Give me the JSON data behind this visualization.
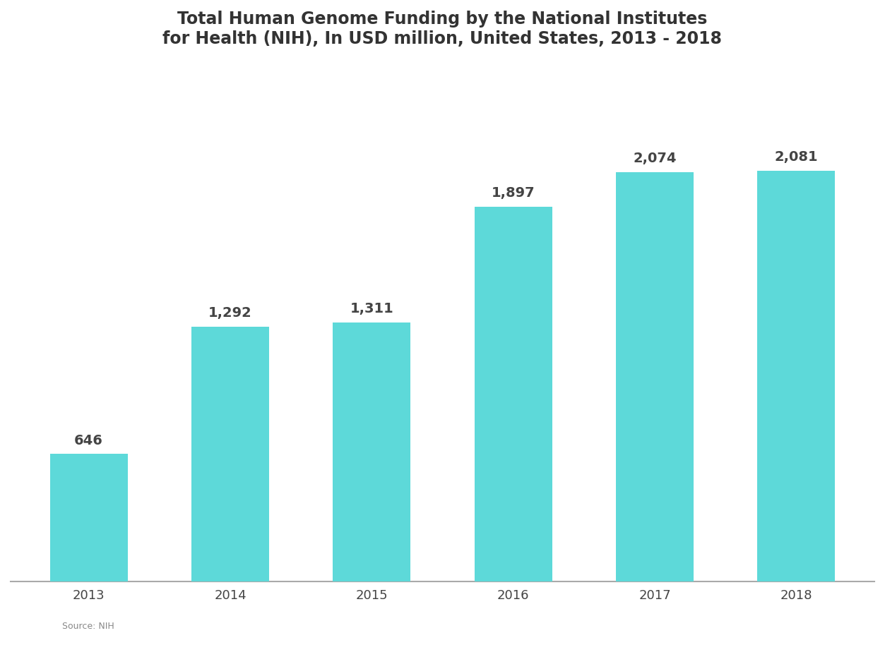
{
  "title_line1": "Total Human Genome Funding by the National Institutes",
  "title_line2": "for Health (NIH), In USD million, United States, 2013 - 2018",
  "categories": [
    "2013",
    "2014",
    "2015",
    "2016",
    "2017",
    "2018"
  ],
  "values": [
    646,
    1292,
    1311,
    1897,
    2074,
    2081
  ],
  "bar_color": "#5DD9D9",
  "background_color": "#ffffff",
  "plot_bg_color": "#ffffff",
  "text_color": "#444444",
  "title_color": "#333333",
  "bar_labels": [
    "646",
    "1,292",
    "1,311",
    "1,897",
    "2,074",
    "2,081"
  ],
  "ylabel": "",
  "xlabel": "",
  "ylim": [
    0,
    2600
  ],
  "figsize": [
    12.53,
    9.14
  ],
  "dpi": 100,
  "label_fontsize": 14,
  "title_fontsize": 17,
  "tick_fontsize": 13,
  "source_text": "Source: NIH",
  "bottom_line_color": "#aaaaaa"
}
